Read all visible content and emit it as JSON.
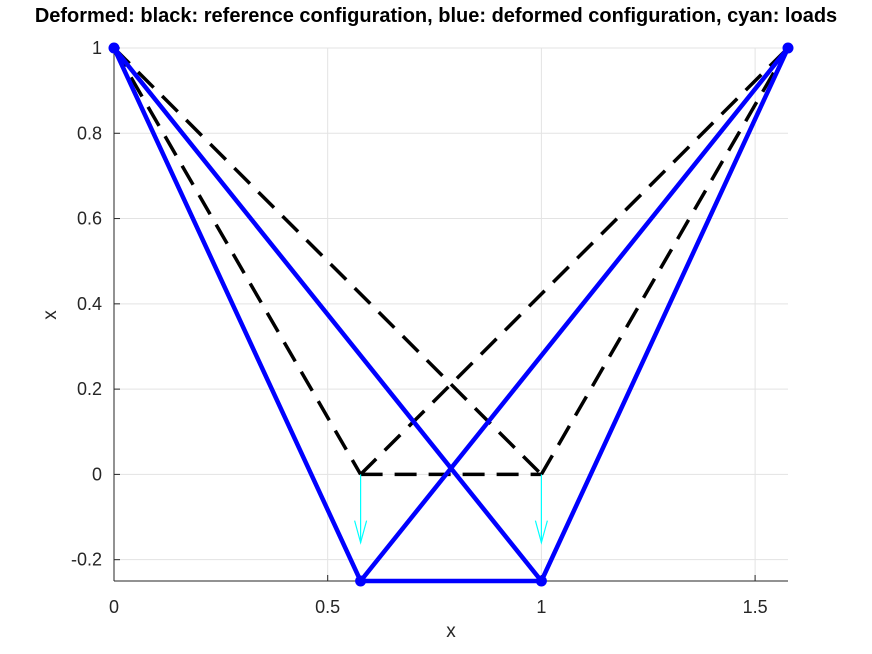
{
  "chart_data": {
    "type": "line",
    "title": "Deformed: black: reference configuration, blue: deformed configuration, cyan: loads",
    "xlabel": "x",
    "ylabel": "x",
    "xlim": [
      0,
      1.577
    ],
    "ylim": [
      -0.25,
      1
    ],
    "grid": true,
    "xticks": [
      {
        "value": 0,
        "label": "0"
      },
      {
        "value": 0.5,
        "label": "0.5"
      },
      {
        "value": 1,
        "label": "1"
      },
      {
        "value": 1.5,
        "label": "1.5"
      }
    ],
    "yticks": [
      {
        "value": 1,
        "label": "1"
      },
      {
        "value": 0.8,
        "label": "0.8"
      },
      {
        "value": 0.6,
        "label": "0.6"
      },
      {
        "value": 0.4,
        "label": "0.4"
      },
      {
        "value": 0.2,
        "label": "0.2"
      },
      {
        "value": 0,
        "label": "0"
      },
      {
        "value": -0.2,
        "label": "-0.2"
      }
    ],
    "series": [
      {
        "color": "#000000",
        "style": "dashed",
        "segments": [
          [
            [
              0,
              1
            ],
            [
              0.577,
              0
            ]
          ],
          [
            [
              0,
              1
            ],
            [
              1,
              0
            ]
          ],
          [
            [
              0.577,
              0
            ],
            [
              1,
              0
            ]
          ],
          [
            [
              0.577,
              0
            ],
            [
              1.577,
              1
            ]
          ],
          [
            [
              1,
              0
            ],
            [
              1.577,
              1
            ]
          ]
        ]
      },
      {
        "color": "#0000ff",
        "style": "solid",
        "segments": [
          [
            [
              0,
              1
            ],
            [
              0.577,
              -0.25
            ]
          ],
          [
            [
              0,
              1
            ],
            [
              1,
              -0.25
            ]
          ],
          [
            [
              0.577,
              -0.25
            ],
            [
              1,
              -0.25
            ]
          ],
          [
            [
              0.577,
              -0.25
            ],
            [
              1.577,
              1
            ]
          ],
          [
            [
              1,
              -0.25
            ],
            [
              1.577,
              1
            ]
          ]
        ],
        "nodes": [
          [
            0,
            1
          ],
          [
            1.577,
            1
          ],
          [
            0.577,
            -0.25
          ],
          [
            1,
            -0.25
          ]
        ]
      }
    ],
    "loads": {
      "color": "#00ffff",
      "arrows": [
        {
          "x": 0.577,
          "y_start": 0,
          "y_end": -0.16
        },
        {
          "x": 1,
          "y_start": 0,
          "y_end": -0.16
        }
      ]
    }
  }
}
